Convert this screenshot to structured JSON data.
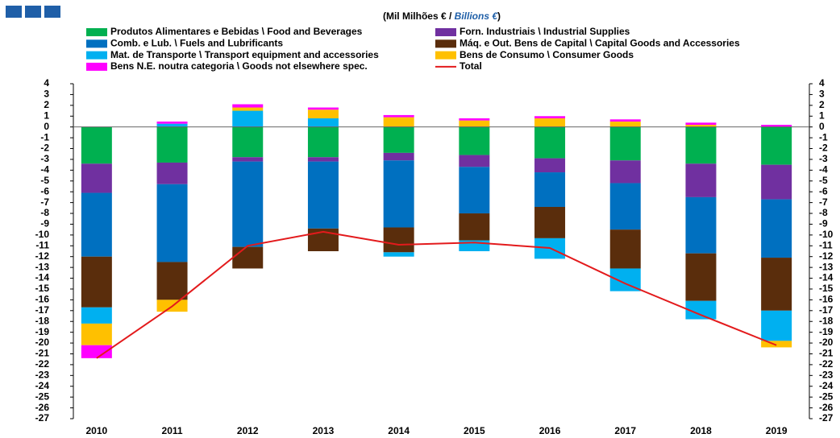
{
  "chart_data": {
    "type": "stacked_bar",
    "title_parts": [
      "(Mil Milhões € / ",
      "Billions €",
      ")"
    ],
    "categories": [
      "2010",
      "2011",
      "2012",
      "2013",
      "2014",
      "2015",
      "2016",
      "2017",
      "2018",
      "2019"
    ],
    "series": [
      {
        "name": "Produtos Alimentares e Bebidas \\ Food and Beverages",
        "color": "#00b050",
        "values": [
          -3.4,
          -3.3,
          -2.8,
          -2.8,
          -2.4,
          -2.6,
          -2.9,
          -3.1,
          -3.4,
          -3.5
        ]
      },
      {
        "name": "Forn. Industriais \\ Industrial Supplies",
        "color": "#7030a0",
        "values": [
          -2.7,
          -2.0,
          -0.4,
          -0.4,
          -0.7,
          -1.1,
          -1.3,
          -2.1,
          -3.1,
          -3.2
        ]
      },
      {
        "name": "Comb. e Lub. \\ Fuels and Lubrificants",
        "color": "#0070c0",
        "values": [
          -5.9,
          -7.2,
          -7.9,
          -6.2,
          -6.2,
          -4.3,
          -3.2,
          -4.3,
          -5.2,
          -5.4
        ]
      },
      {
        "name": "Máq. e Out. Bens de Capital \\ Capital Goods and Accessories",
        "color": "#5a2d0c",
        "values": [
          -4.7,
          -3.5,
          -2.0,
          -2.1,
          -2.3,
          -2.5,
          -2.9,
          -3.6,
          -4.4,
          -4.9
        ]
      },
      {
        "name": "Mat. de Transporte \\ Transport equipment and accessories",
        "color": "#00b0f0",
        "values": [
          -1.5,
          0.3,
          1.5,
          0.8,
          -0.4,
          -1.0,
          -1.9,
          -2.1,
          -1.7,
          -2.8
        ]
      },
      {
        "name": "Bens de Consumo \\ Consumer Goods",
        "color": "#ffc000",
        "values": [
          -2.0,
          -1.1,
          0.3,
          0.8,
          0.9,
          0.6,
          0.8,
          0.5,
          0.2,
          -0.6
        ]
      },
      {
        "name": "Bens N.E. noutra categoria \\ Goods not elsewhere spec.",
        "color": "#ff00ff",
        "values": [
          -1.2,
          0.2,
          0.3,
          0.2,
          0.2,
          0.2,
          0.2,
          0.2,
          0.2,
          0.2
        ]
      },
      {
        "name": "Total",
        "color": "#e31a1c",
        "line": true,
        "values": [
          -21.4,
          -16.6,
          -11.0,
          -9.7,
          -10.9,
          -10.7,
          -11.2,
          -14.5,
          -17.4,
          -20.2
        ]
      }
    ],
    "ylim": [
      -27,
      4
    ],
    "yticks": [
      4,
      3,
      2,
      1,
      0,
      -1,
      -2,
      -3,
      -4,
      -5,
      -6,
      -7,
      -8,
      -9,
      -10,
      -11,
      -12,
      -13,
      -14,
      -15,
      -16,
      -17,
      -18,
      -19,
      -20,
      -21,
      -22,
      -23,
      -24,
      -25,
      -26,
      -27
    ],
    "y2lim": [
      -27,
      4
    ],
    "y2ticks": [
      4,
      3,
      2,
      1,
      0,
      -1,
      -2,
      -3,
      -4,
      -5,
      -6,
      -7,
      -8,
      -9,
      -10,
      -11,
      -12,
      -13,
      -14,
      -15,
      -16,
      -17,
      -18,
      -19,
      -20,
      -21,
      -22,
      -23,
      -24,
      -25,
      -26,
      -27
    ]
  }
}
